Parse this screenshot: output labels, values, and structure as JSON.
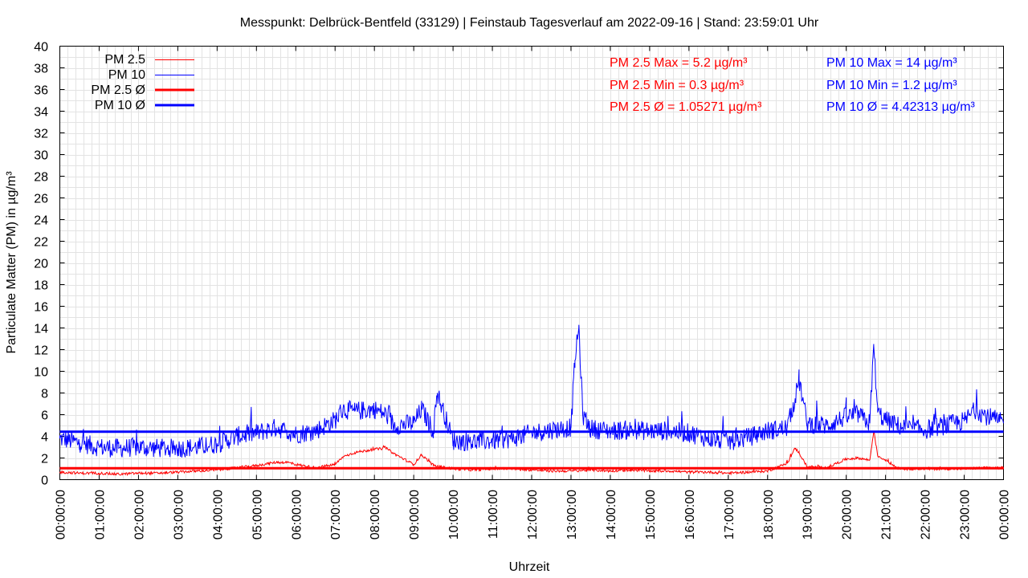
{
  "chart_data": {
    "type": "line",
    "title": "Messpunkt: Delbrück-Bentfeld (33129) | Feinstaub Tagesverlauf am 2022-09-16 | Stand: 23:59:01 Uhr",
    "xlabel": "Uhrzeit",
    "ylabel": "Particulate Matter (PM) in µg/m³",
    "ylim": [
      0,
      40
    ],
    "xlim": [
      0,
      24
    ],
    "grid": true,
    "legend_position": "top-left",
    "x_tick_labels": [
      "00:00:00",
      "01:00:00",
      "02:00:00",
      "03:00:00",
      "04:00:00",
      "05:00:00",
      "06:00:00",
      "07:00:00",
      "08:00:00",
      "09:00:00",
      "10:00:00",
      "11:00:00",
      "12:00:00",
      "13:00:00",
      "14:00:00",
      "15:00:00",
      "16:00:00",
      "17:00:00",
      "18:00:00",
      "19:00:00",
      "20:00:00",
      "21:00:00",
      "22:00:00",
      "23:00:00",
      "00:00:00"
    ],
    "y_tick_labels": [
      "0",
      "2",
      "4",
      "6",
      "8",
      "10",
      "12",
      "14",
      "16",
      "18",
      "20",
      "22",
      "24",
      "26",
      "28",
      "30",
      "32",
      "34",
      "36",
      "38",
      "40"
    ],
    "series": [
      {
        "name": "PM 2.5",
        "color": "#ff0000",
        "x": [
          0,
          0.5,
          1,
          1.5,
          2,
          2.5,
          3,
          3.5,
          4,
          4.5,
          5,
          5.5,
          5.8,
          6,
          6.5,
          7,
          7.2,
          7.5,
          8,
          8.3,
          8.5,
          9,
          9.2,
          9.5,
          10,
          10.5,
          11,
          11.5,
          12,
          12.5,
          13,
          13.5,
          14,
          14.5,
          15,
          15.5,
          16,
          16.5,
          17,
          17.5,
          18,
          18.5,
          18.7,
          18.8,
          19,
          19.5,
          20,
          20.3,
          20.6,
          20.7,
          20.8,
          21,
          21.3,
          21.5,
          22,
          22.5,
          23,
          23.5,
          24
        ],
        "values": [
          0.7,
          0.6,
          0.6,
          0.5,
          0.6,
          0.6,
          0.7,
          0.8,
          0.9,
          1.1,
          1.3,
          1.6,
          1.6,
          1.4,
          1.1,
          1.4,
          2.1,
          2.5,
          2.8,
          2.9,
          2.4,
          1.4,
          2.3,
          1.3,
          1.0,
          0.9,
          1.0,
          1.0,
          0.9,
          0.8,
          0.8,
          0.9,
          0.8,
          0.9,
          0.8,
          0.8,
          0.7,
          0.7,
          0.6,
          0.7,
          0.8,
          1.5,
          2.9,
          2.5,
          1.2,
          1.1,
          1.9,
          2.0,
          1.8,
          4.5,
          2.2,
          1.8,
          1.1,
          1.0,
          1.0,
          1.0,
          1.0,
          1.1,
          1.1
        ]
      },
      {
        "name": "PM 10",
        "color": "#0000ff",
        "x": [
          0,
          0.5,
          1,
          1.5,
          2,
          2.5,
          3,
          3.5,
          4,
          4.5,
          5,
          5.5,
          6,
          6.5,
          7,
          7.2,
          7.5,
          8,
          8.3,
          8.5,
          9,
          9.2,
          9.5,
          9.6,
          10,
          10.5,
          11,
          11.5,
          12,
          12.5,
          13,
          13.1,
          13.2,
          13.3,
          13.5,
          14,
          14.5,
          15,
          15.5,
          16,
          16.5,
          17,
          17.5,
          18,
          18.5,
          18.7,
          18.8,
          19,
          19.5,
          20,
          20.3,
          20.6,
          20.7,
          20.8,
          21,
          21.3,
          21.5,
          22,
          22.5,
          23,
          23.3,
          23.5,
          24
        ],
        "values": [
          3.8,
          3.4,
          3.0,
          2.9,
          3.0,
          2.9,
          2.9,
          3.0,
          3.3,
          4.0,
          4.3,
          4.8,
          4.2,
          4.5,
          5.5,
          6.5,
          6.3,
          6.5,
          6.0,
          5.0,
          5.2,
          6.5,
          4.5,
          8.0,
          3.6,
          3.5,
          3.6,
          3.8,
          4.3,
          4.6,
          4.8,
          11.0,
          14.0,
          6.0,
          4.7,
          4.5,
          4.6,
          4.5,
          4.5,
          4.3,
          3.8,
          3.5,
          3.9,
          4.5,
          4.8,
          7.5,
          9.3,
          5.2,
          5.0,
          5.8,
          6.0,
          5.2,
          12.4,
          6.2,
          5.5,
          5.0,
          4.8,
          4.6,
          5.0,
          5.4,
          6.5,
          6.0,
          5.2
        ]
      },
      {
        "name": "PM 2.5 Ø",
        "color": "#ff0000",
        "constant": 1.05271
      },
      {
        "name": "PM 10 Ø",
        "color": "#0000ff",
        "constant": 4.42313
      }
    ],
    "annotations": {
      "pm25_max": "PM 2.5 Max = 5.2 µg/m³",
      "pm25_min": "PM 2.5 Min = 0.3 µg/m³",
      "pm25_avg": "PM 2.5 Ø = 1.05271 µg/m³",
      "pm10_max": "PM 10 Max = 14 µg/m³",
      "pm10_min": "PM 10 Min = 1.2 µg/m³",
      "pm10_avg": "PM 10 Ø = 4.42313 µg/m³"
    }
  }
}
